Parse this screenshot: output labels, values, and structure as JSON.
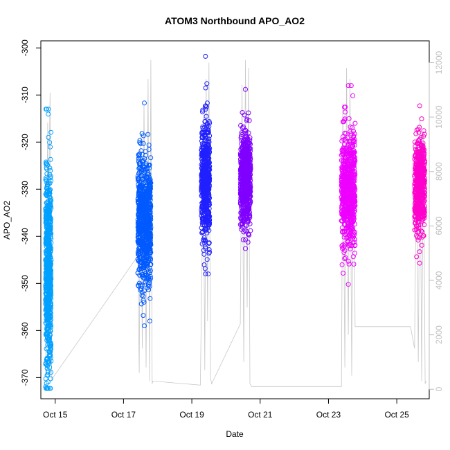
{
  "chart_data": {
    "type": "scatter",
    "title": "ATOM3 Northbound APO_AO2",
    "xlabel": "Date",
    "ylabel": "APO_AO2",
    "x_range_days": [
      14.58,
      25.95
    ],
    "x_ticks": [
      {
        "label": "Oct 15",
        "day": 15
      },
      {
        "label": "Oct 17",
        "day": 17
      },
      {
        "label": "Oct 19",
        "day": 19
      },
      {
        "label": "Oct 21",
        "day": 21
      },
      {
        "label": "Oct 23",
        "day": 23
      },
      {
        "label": "Oct 25",
        "day": 25
      }
    ],
    "ylim": [
      -374.5,
      -298.5
    ],
    "y_ticks": [
      -300,
      -310,
      -320,
      -330,
      -340,
      -350,
      -360,
      -370
    ],
    "secondary_axis": {
      "position": "right",
      "color": "#bebebe",
      "ylim": [
        -350,
        12800
      ],
      "ticks": [
        0,
        2000,
        4000,
        6000,
        8000,
        10000,
        12000
      ]
    },
    "series": [
      {
        "flight": 1,
        "color": "#00a0ff",
        "day_start": 14.72,
        "day_end": 14.88,
        "y_min": -372.3,
        "y_max": -313.0,
        "center": -347.0,
        "spread": 11.0,
        "n": 650
      },
      {
        "flight": 2,
        "color": "#005aff",
        "day_start": 17.42,
        "day_end": 17.8,
        "y_min": -359.0,
        "y_max": -311.7,
        "center": -337.0,
        "spread": 7.0,
        "n": 750
      },
      {
        "flight": 3,
        "color": "#2020ff",
        "day_start": 19.28,
        "day_end": 19.52,
        "y_min": -348.0,
        "y_max": -301.8,
        "center": -328.0,
        "spread": 6.0,
        "n": 560
      },
      {
        "flight": 4,
        "color": "#8000ff",
        "day_start": 20.42,
        "day_end": 20.72,
        "y_min": -342.6,
        "y_max": -308.8,
        "center": -328.0,
        "spread": 5.0,
        "n": 620
      },
      {
        "flight": 5,
        "color": "#ee00ff",
        "day_start": 23.38,
        "day_end": 23.78,
        "y_min": -350.2,
        "y_max": -308.0,
        "center": -330.0,
        "spread": 6.0,
        "n": 650
      },
      {
        "flight": 6,
        "color": "#ff00cc",
        "day_start": 25.52,
        "day_end": 25.82,
        "y_min": -345.7,
        "y_max": -312.3,
        "center": -329.0,
        "spread": 5.0,
        "n": 480
      }
    ],
    "altitude_series": {
      "color": "#c8c8c8",
      "points": [
        [
          14.72,
          700
        ],
        [
          14.75,
          5800
        ],
        [
          14.78,
          9800
        ],
        [
          14.8,
          3000
        ],
        [
          14.83,
          8800
        ],
        [
          14.85,
          10900
        ],
        [
          14.87,
          4000
        ],
        [
          14.9,
          300
        ],
        [
          14.92,
          400
        ],
        [
          17.42,
          4900
        ],
        [
          17.46,
          600
        ],
        [
          17.5,
          9500
        ],
        [
          17.55,
          1500
        ],
        [
          17.6,
          10500
        ],
        [
          17.66,
          800
        ],
        [
          17.72,
          11400
        ],
        [
          17.76,
          300
        ],
        [
          17.8,
          12100
        ],
        [
          17.84,
          200
        ],
        [
          17.86,
          300
        ],
        [
          19.25,
          150
        ],
        [
          19.3,
          5000
        ],
        [
          19.33,
          10000
        ],
        [
          19.38,
          700
        ],
        [
          19.42,
          11400
        ],
        [
          19.46,
          2500
        ],
        [
          19.5,
          12000
        ],
        [
          19.55,
          400
        ],
        [
          19.58,
          200
        ],
        [
          20.42,
          2400
        ],
        [
          20.47,
          11200
        ],
        [
          20.52,
          1000
        ],
        [
          20.57,
          12100
        ],
        [
          20.62,
          3000
        ],
        [
          20.66,
          11800
        ],
        [
          20.7,
          200
        ],
        [
          20.75,
          100
        ],
        [
          23.38,
          100
        ],
        [
          23.42,
          10500
        ],
        [
          23.48,
          800
        ],
        [
          23.53,
          11800
        ],
        [
          23.58,
          2000
        ],
        [
          23.63,
          11400
        ],
        [
          23.68,
          500
        ],
        [
          23.74,
          9800
        ],
        [
          23.78,
          2300
        ],
        [
          25.4,
          2300
        ],
        [
          25.52,
          1500
        ],
        [
          25.58,
          9000
        ],
        [
          25.63,
          1000
        ],
        [
          25.68,
          10000
        ],
        [
          25.73,
          300
        ],
        [
          25.78,
          9500
        ],
        [
          25.83,
          200
        ],
        [
          25.86,
          300
        ]
      ]
    }
  }
}
